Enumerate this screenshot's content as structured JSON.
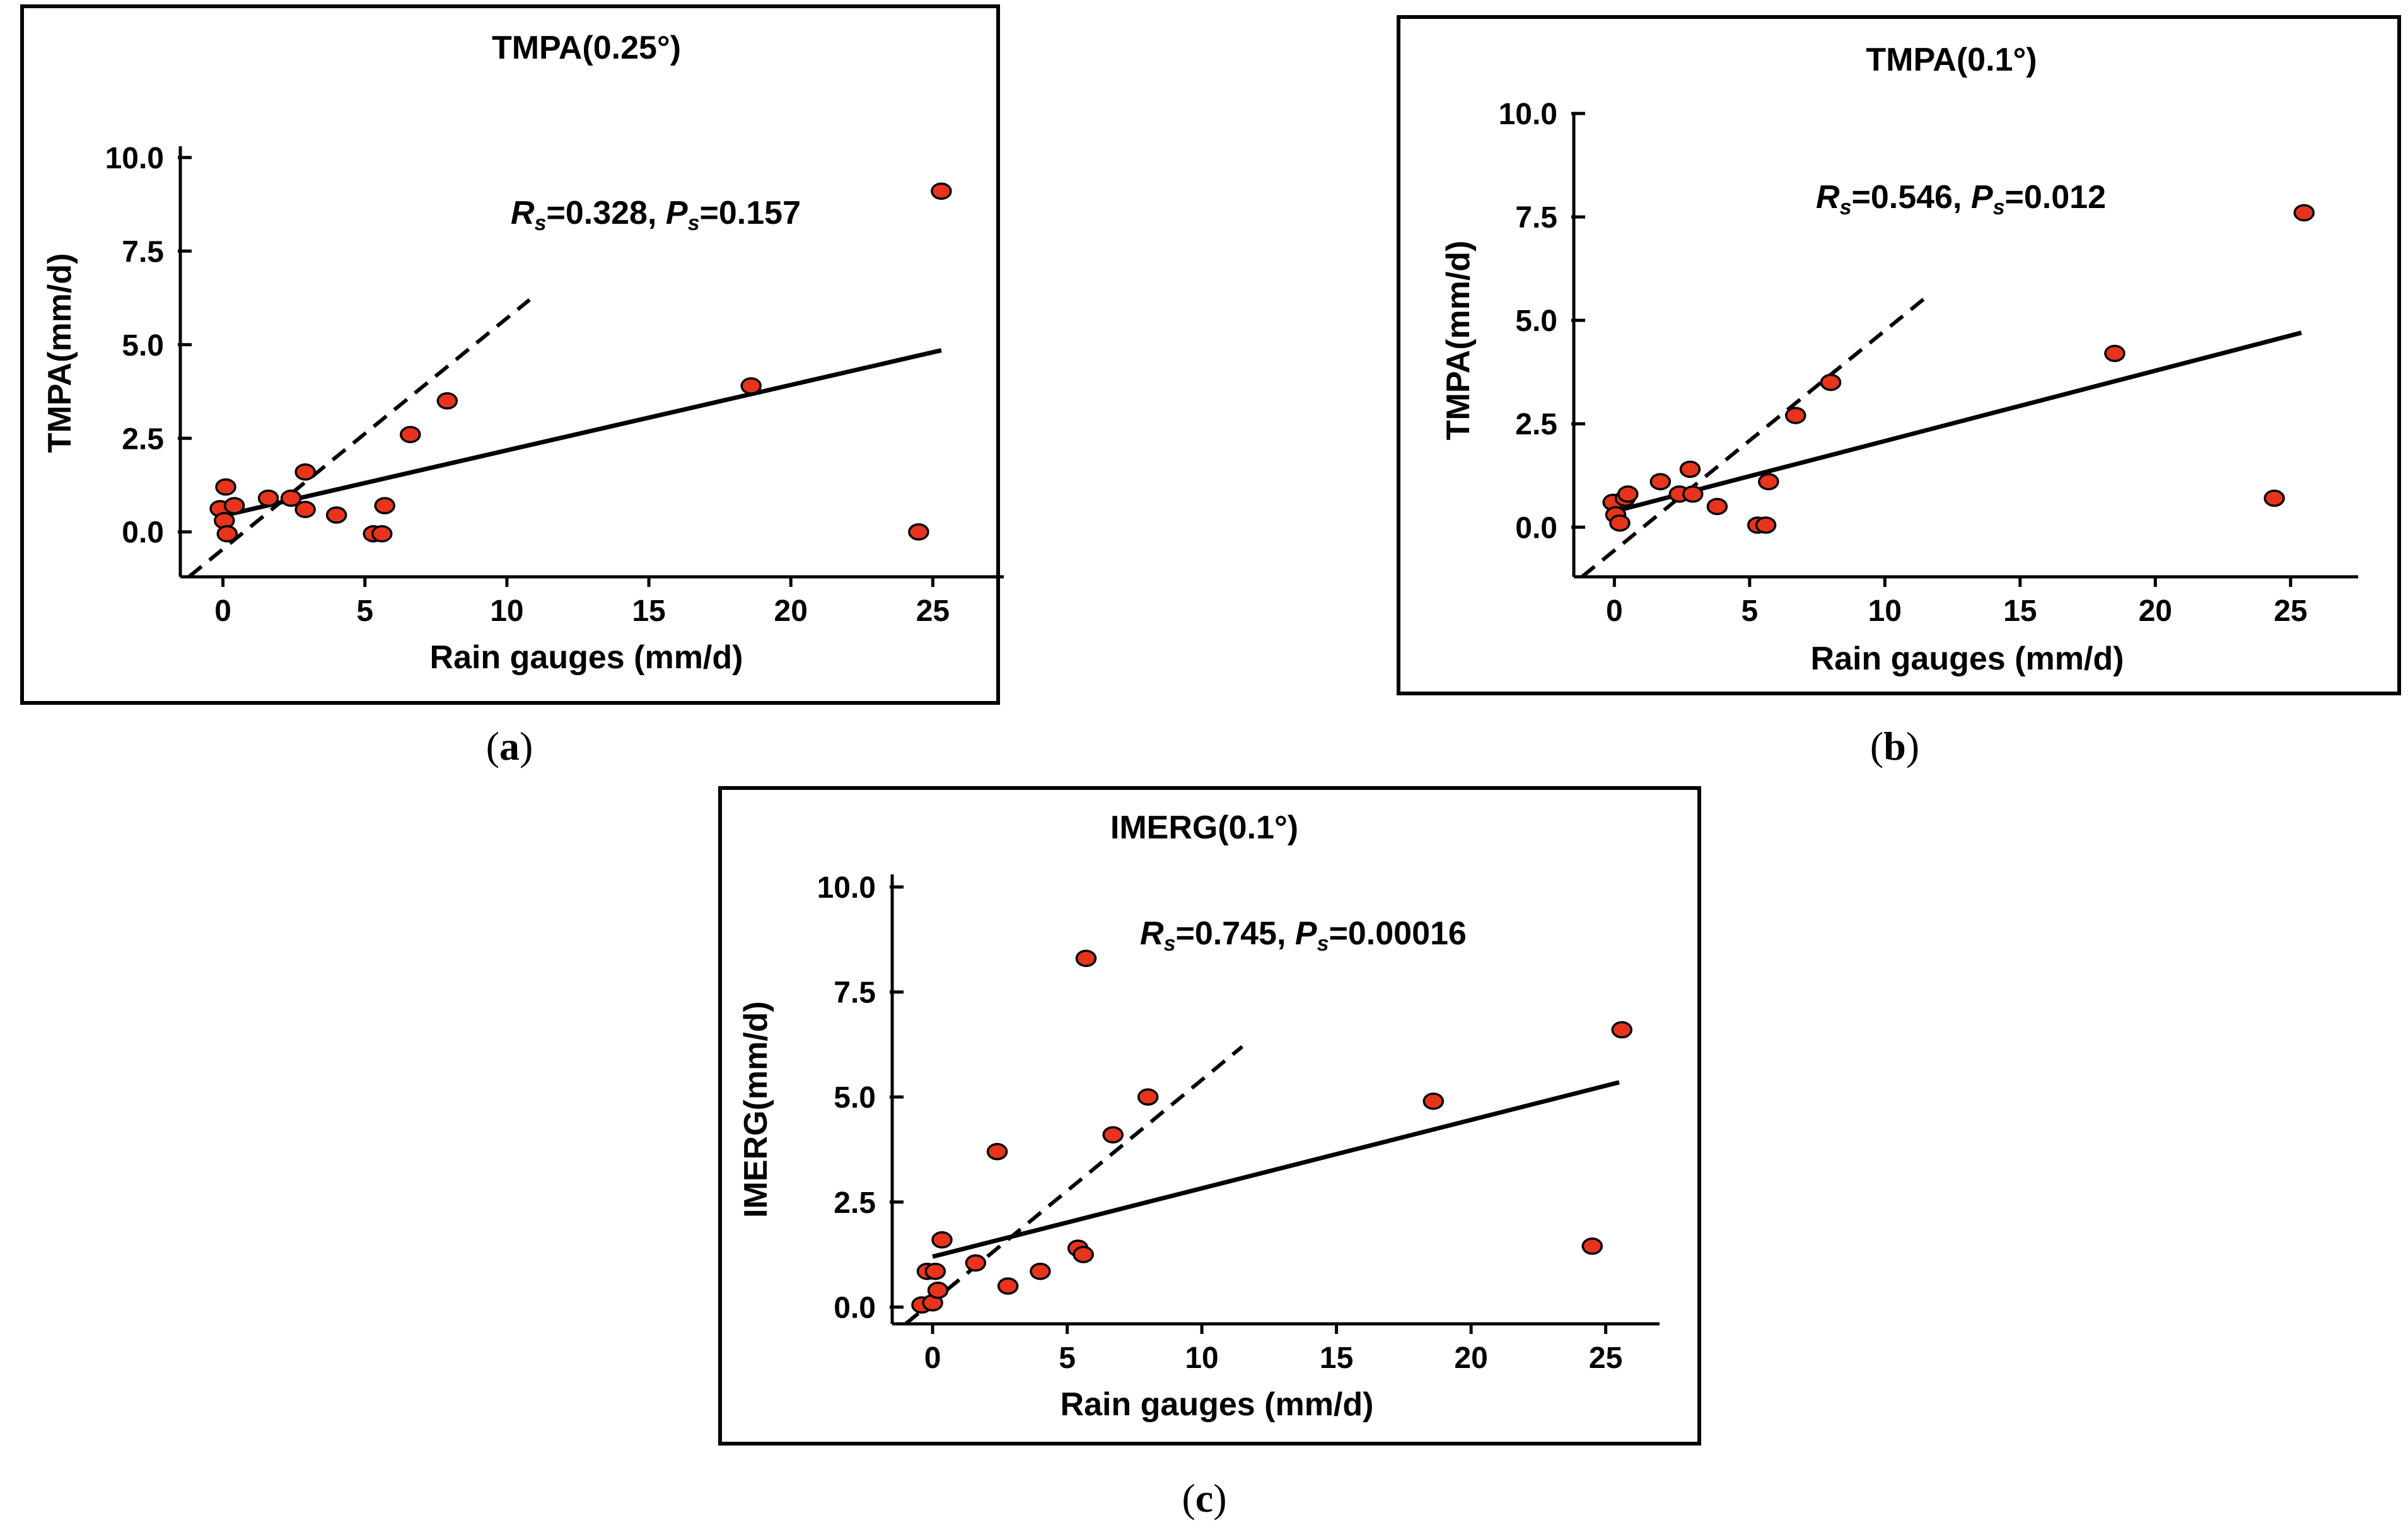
{
  "chart_data": [
    {
      "type": "scatter",
      "panel_label": "a",
      "title": "TMPA(0.25°)",
      "xlabel": "Rain gauges (mm/d)",
      "ylabel": "TMPA(mm/d)",
      "xlim": [
        -1.5,
        27.5
      ],
      "ylim": [
        -1.2,
        10.3
      ],
      "xticks": [
        0,
        5,
        10,
        15,
        20,
        25
      ],
      "yticks": [
        0.0,
        2.5,
        5.0,
        7.5,
        10.0
      ],
      "xtick_labels": [
        "0",
        "5",
        "10",
        "15",
        "20",
        "25"
      ],
      "ytick_labels": [
        "0.0",
        "2.5",
        "5.0",
        "7.5",
        "10.0"
      ],
      "stat": {
        "r_symbol": "R",
        "r_sub": "s",
        "r_value": "=0.328,",
        "p_symbol": "P",
        "p_sub": "s",
        "p_value": "=0.157"
      },
      "points": [
        [
          -0.1,
          0.62
        ],
        [
          0.05,
          0.3
        ],
        [
          0.1,
          1.2
        ],
        [
          0.15,
          -0.05
        ],
        [
          0.4,
          0.7
        ],
        [
          1.6,
          0.9
        ],
        [
          2.4,
          0.9
        ],
        [
          2.9,
          1.6
        ],
        [
          2.9,
          0.6
        ],
        [
          4.0,
          0.45
        ],
        [
          5.3,
          -0.05
        ],
        [
          5.6,
          -0.05
        ],
        [
          5.7,
          0.7
        ],
        [
          6.6,
          2.6
        ],
        [
          7.9,
          3.5
        ],
        [
          18.6,
          3.9
        ],
        [
          24.5,
          0.0
        ],
        [
          25.3,
          9.1
        ]
      ],
      "fit_line": [
        [
          0.1,
          0.45
        ],
        [
          25.3,
          4.85
        ]
      ],
      "identity_line": [
        [
          -1.2,
          -1.2
        ],
        [
          10.8,
          6.2
        ]
      ],
      "marker_color": "#e8341c"
    },
    {
      "type": "scatter",
      "panel_label": "b",
      "title": "TMPA(0.1°)",
      "xlabel": "Rain gauges (mm/d)",
      "ylabel": "TMPA(mm/d)",
      "xlim": [
        -1.5,
        27.5
      ],
      "ylim": [
        -1.2,
        10.0
      ],
      "xticks": [
        0,
        5,
        10,
        15,
        20,
        25
      ],
      "yticks": [
        0.0,
        2.5,
        5.0,
        7.5,
        10.0
      ],
      "xtick_labels": [
        "0",
        "5",
        "10",
        "15",
        "20",
        "25"
      ],
      "ytick_labels": [
        "0.0",
        "2.5",
        "5.0",
        "7.5",
        "10.0"
      ],
      "stat": {
        "r_symbol": "R",
        "r_sub": "s",
        "r_value": "=0.546,",
        "p_symbol": "P",
        "p_sub": "s",
        "p_value": "=0.012"
      },
      "points": [
        [
          -0.05,
          0.6
        ],
        [
          0.05,
          0.3
        ],
        [
          0.2,
          0.1
        ],
        [
          0.4,
          0.7
        ],
        [
          0.5,
          0.8
        ],
        [
          1.7,
          1.1
        ],
        [
          2.4,
          0.8
        ],
        [
          2.8,
          1.4
        ],
        [
          2.9,
          0.8
        ],
        [
          3.8,
          0.5
        ],
        [
          5.3,
          0.05
        ],
        [
          5.6,
          0.05
        ],
        [
          5.7,
          1.1
        ],
        [
          6.7,
          2.7
        ],
        [
          8.0,
          3.5
        ],
        [
          18.5,
          4.2
        ],
        [
          24.4,
          0.7
        ],
        [
          25.5,
          7.6
        ]
      ],
      "fit_line": [
        [
          0.1,
          0.4
        ],
        [
          25.4,
          4.7
        ]
      ],
      "identity_line": [
        [
          -1.2,
          -1.2
        ],
        [
          11.6,
          5.6
        ]
      ],
      "marker_color": "#e8341c"
    },
    {
      "type": "scatter",
      "panel_label": "c",
      "title": "IMERG(0.1°)",
      "xlabel": "Rain gauges (mm/d)",
      "ylabel": "IMERG(mm/d)",
      "xlim": [
        -1.5,
        27.0
      ],
      "ylim": [
        -0.4,
        10.3
      ],
      "xticks": [
        0,
        5,
        10,
        15,
        20,
        25
      ],
      "yticks": [
        0.0,
        2.5,
        5.0,
        7.5,
        10.0
      ],
      "xtick_labels": [
        "0",
        "5",
        "10",
        "15",
        "20",
        "25"
      ],
      "ytick_labels": [
        "0.0",
        "2.5",
        "5.0",
        "7.5",
        "10.0"
      ],
      "stat": {
        "r_symbol": "R",
        "r_sub": "s",
        "r_value": "=0.745,",
        "p_symbol": "P",
        "p_sub": "s",
        "p_value": "=0.00016"
      },
      "points": [
        [
          -0.4,
          0.05
        ],
        [
          -0.2,
          0.85
        ],
        [
          0.0,
          0.1
        ],
        [
          0.1,
          0.85
        ],
        [
          0.2,
          0.4
        ],
        [
          0.35,
          1.6
        ],
        [
          1.6,
          1.05
        ],
        [
          2.4,
          3.7
        ],
        [
          2.8,
          0.5
        ],
        [
          4.0,
          0.85
        ],
        [
          5.4,
          1.4
        ],
        [
          5.6,
          1.25
        ],
        [
          5.7,
          8.3
        ],
        [
          6.7,
          4.1
        ],
        [
          8.0,
          5.0
        ],
        [
          18.6,
          4.9
        ],
        [
          24.5,
          1.45
        ],
        [
          25.6,
          6.6
        ]
      ],
      "fit_line": [
        [
          0.0,
          1.2
        ],
        [
          25.5,
          5.35
        ]
      ],
      "identity_line": [
        [
          -1.0,
          -0.4
        ],
        [
          11.5,
          6.2
        ]
      ],
      "marker_color": "#e8341c"
    }
  ]
}
